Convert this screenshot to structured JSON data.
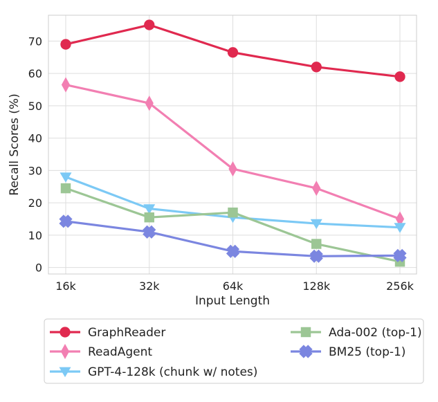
{
  "chart_data": {
    "type": "line",
    "title": "",
    "xlabel": "Input Length",
    "ylabel": "Recall Scores (%)",
    "categories": [
      "16k",
      "32k",
      "64k",
      "128k",
      "256k"
    ],
    "ylim": [
      -2,
      78
    ],
    "yticks": [
      0,
      10,
      20,
      30,
      40,
      50,
      60,
      70
    ],
    "grid": true,
    "legend_position": "bottom",
    "series": [
      {
        "name": "GraphReader",
        "values": [
          69,
          75,
          66.5,
          62,
          59
        ],
        "color": "#e0294f",
        "marker": "circle"
      },
      {
        "name": "ReadAgent",
        "values": [
          56.5,
          50.8,
          30.5,
          24.5,
          15
        ],
        "color": "#f27fb2",
        "marker": "diamond"
      },
      {
        "name": "GPT-4-128k (chunk w/ notes)",
        "values": [
          28,
          18.2,
          15.5,
          13.6,
          12.4
        ],
        "color": "#7cc9f5",
        "marker": "triangle-down"
      },
      {
        "name": "Ada-002 (top-1)",
        "values": [
          24.5,
          15.5,
          17,
          7.3,
          1.8
        ],
        "color": "#9cc695",
        "marker": "square"
      },
      {
        "name": "BM25 (top-1)",
        "values": [
          14.3,
          11,
          5,
          3.5,
          3.7
        ],
        "color": "#7b86e0",
        "marker": "x"
      }
    ]
  }
}
